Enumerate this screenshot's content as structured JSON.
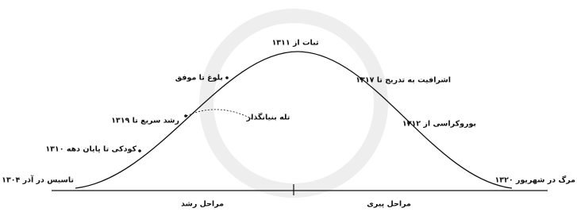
{
  "labels": {
    "peak": "ثبات از ۱۳۱۱",
    "maturity": "بلوغ تا موفق",
    "aristocracy": "اشرافیت به تدریج تا ۱۳۱۷",
    "rapid_growth": "رشد سریع تا ۱۳۱۹",
    "founder_trap": "تله بنیانگذار",
    "bureaucracy": "بوروکراسی از ۱۳۱۲",
    "childhood": "کودکی تا پایان دهه ۱۳۱۰",
    "founding": "تاسیس در آذر ۱۳۰۴",
    "death": "مرگ در شهریور ۱۳۲۰"
  },
  "axis": {
    "growth": "مراحل رشد",
    "aging": "مراحل پیری"
  }
}
